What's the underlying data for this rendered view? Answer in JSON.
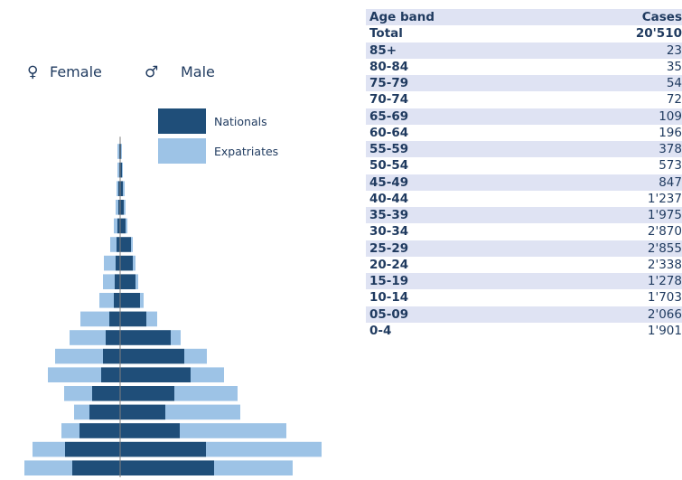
{
  "chart_data": {
    "type": "bar",
    "subtype": "population-pyramid",
    "categories": [
      "0-4",
      "05-09",
      "10-14",
      "15-19",
      "20-24",
      "25-29",
      "30-34",
      "35-39",
      "40-44",
      "45-49",
      "50-54",
      "55-59",
      "60-64",
      "65-69",
      "70-74",
      "75-79",
      "80-84",
      "85+"
    ],
    "series": [
      {
        "name": "Nationals",
        "side": "Female",
        "color": "#1f4e79",
        "values": [
          53,
          61,
          45,
          34,
          31,
          21,
          19,
          16,
          12,
          7,
          6,
          5,
          4,
          3,
          2,
          2,
          1,
          1
        ]
      },
      {
        "name": "Expatriates",
        "side": "Female",
        "color": "#9dc3e6",
        "values": [
          53,
          36,
          20,
          17,
          31,
          59,
          53,
          40,
          32,
          16,
          13,
          13,
          7,
          4,
          3,
          2,
          2,
          2
        ]
      },
      {
        "name": "Nationals",
        "side": "Male",
        "color": "#1f4e79",
        "values": [
          104,
          95,
          66,
          50,
          60,
          78,
          71,
          56,
          29,
          22,
          17,
          14,
          12,
          6,
          4,
          3,
          2,
          1
        ]
      },
      {
        "name": "Expatriates",
        "side": "Male",
        "color": "#9dc3e6",
        "values": [
          87,
          128,
          118,
          83,
          70,
          37,
          25,
          11,
          12,
          4,
          3,
          3,
          2,
          2,
          2,
          2,
          1,
          1
        ]
      }
    ],
    "legend": {
      "position": "upper-left",
      "entries": [
        "Nationals",
        "Expatriates"
      ]
    },
    "sex_labels": {
      "female_symbol": "♀",
      "female": "Female",
      "male_symbol": "♂",
      "male": "Male"
    },
    "grid": false
  },
  "table": {
    "headers": {
      "band": "Age band",
      "cases": "Cases"
    },
    "total": {
      "label": "Total",
      "value": "20'510"
    },
    "rows": [
      {
        "band": "85+",
        "cases": "23"
      },
      {
        "band": "80-84",
        "cases": "35"
      },
      {
        "band": "75-79",
        "cases": "54"
      },
      {
        "band": "70-74",
        "cases": "72"
      },
      {
        "band": "65-69",
        "cases": "109"
      },
      {
        "band": "60-64",
        "cases": "196"
      },
      {
        "band": "55-59",
        "cases": "378"
      },
      {
        "band": "50-54",
        "cases": "573"
      },
      {
        "band": "45-49",
        "cases": "847"
      },
      {
        "band": "40-44",
        "cases": "1'237"
      },
      {
        "band": "35-39",
        "cases": "1'975"
      },
      {
        "band": "30-34",
        "cases": "2'870"
      },
      {
        "band": "25-29",
        "cases": "2'855"
      },
      {
        "band": "20-24",
        "cases": "2'338"
      },
      {
        "band": "15-19",
        "cases": "1'278"
      },
      {
        "band": "10-14",
        "cases": "1'703"
      },
      {
        "band": "05-09",
        "cases": "2'066"
      },
      {
        "band": "0-4",
        "cases": "1'901"
      }
    ]
  }
}
